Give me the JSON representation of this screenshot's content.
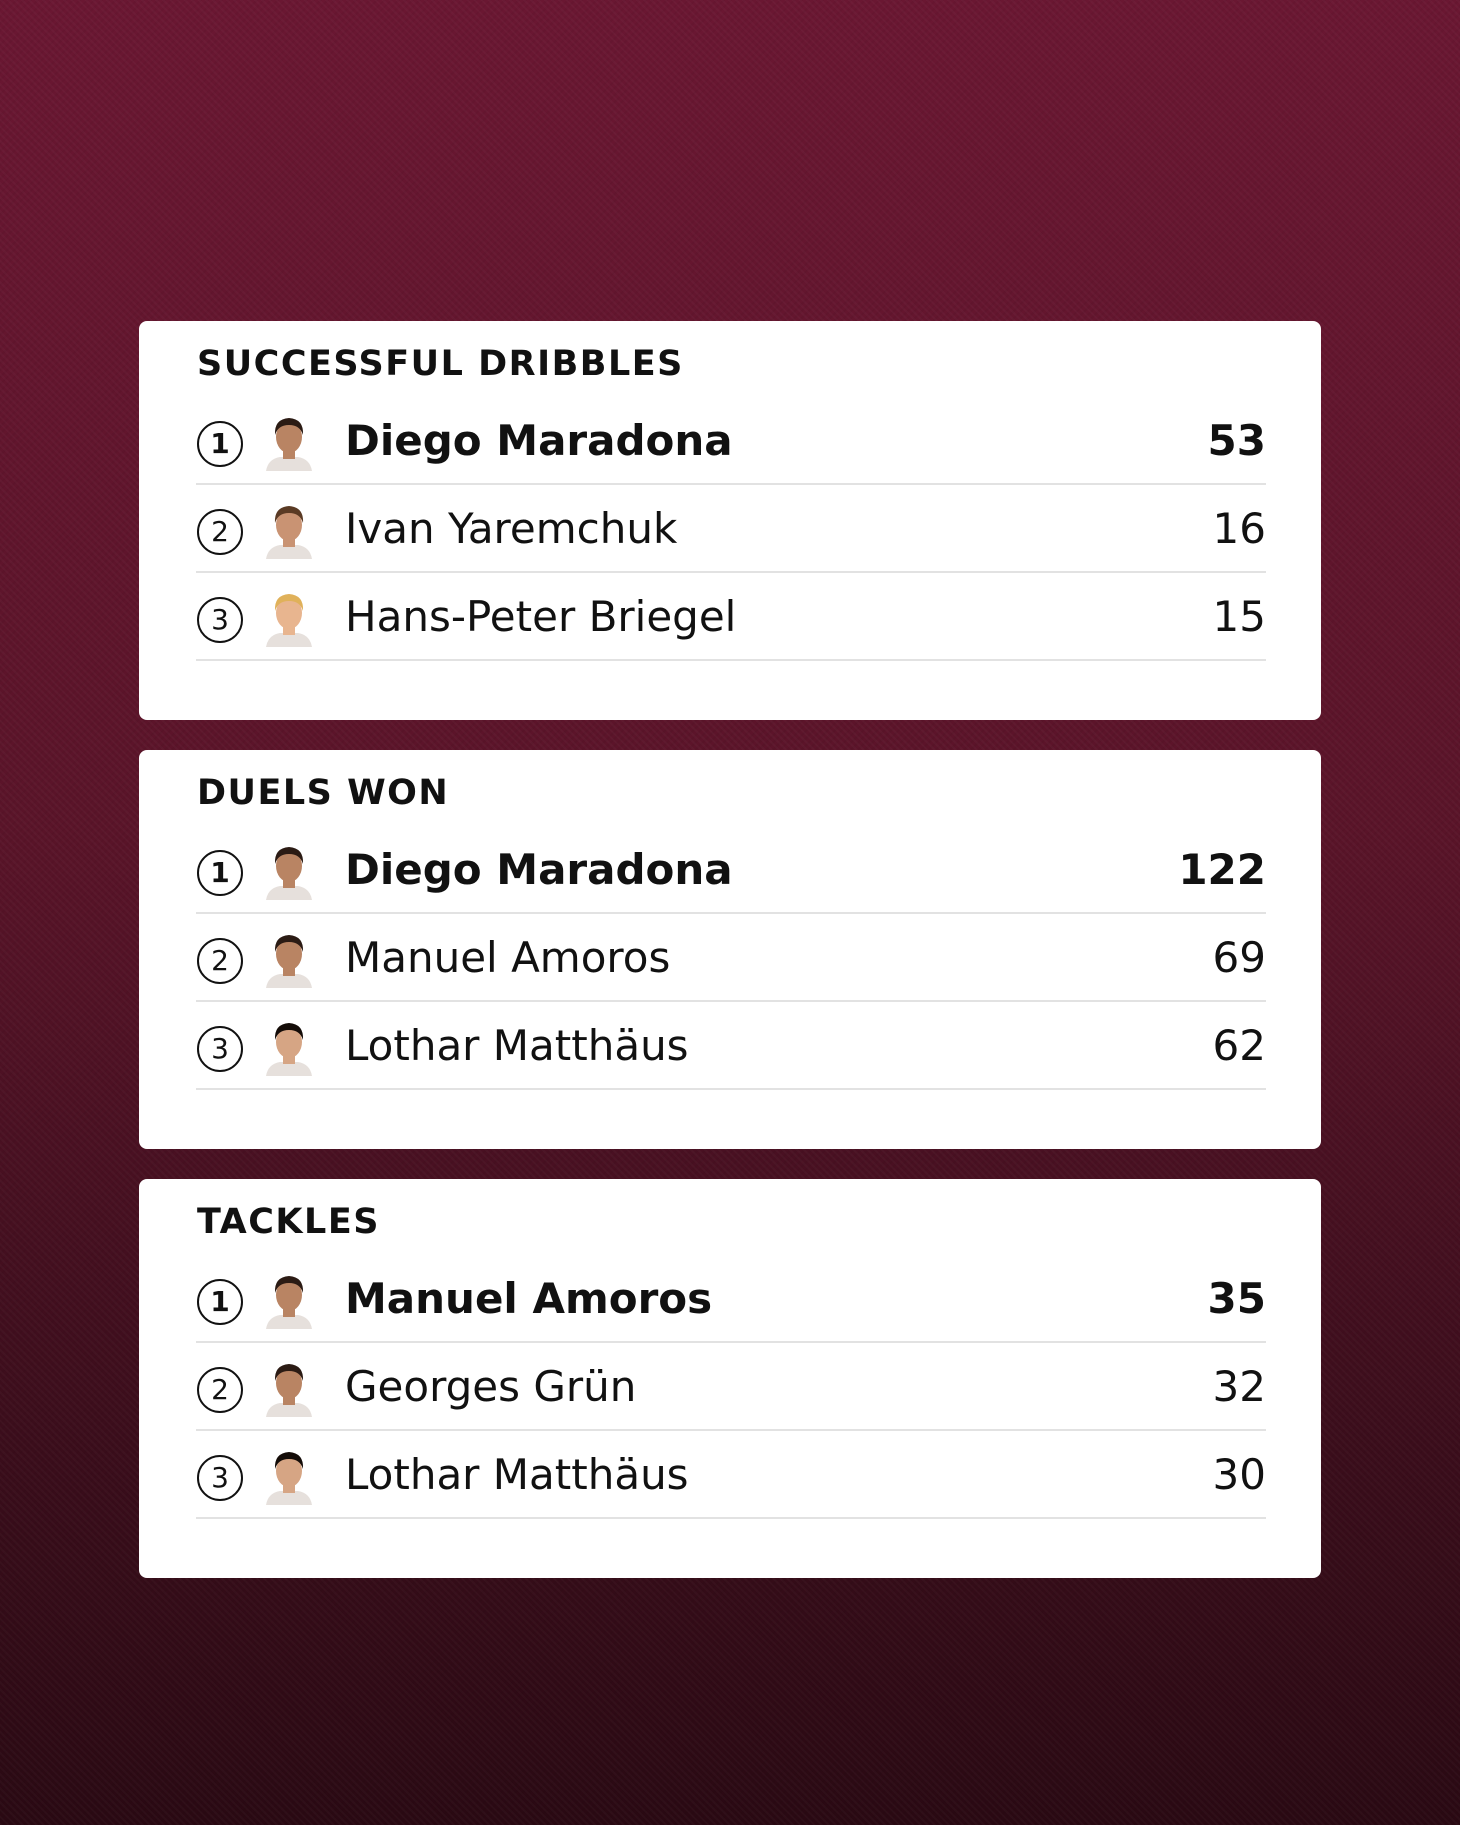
{
  "colors": {
    "background_top": "#6a1732",
    "background_bottom": "#2a0913",
    "card": "#ffffff",
    "text": "#111111",
    "divider": "#e2e2e2"
  },
  "sections": [
    {
      "title": "SUCCESSFUL DRIBBLES",
      "rows": [
        {
          "rank": "1",
          "name": "Diego Maradona",
          "value": "53",
          "avatar": "player-portrait-icon"
        },
        {
          "rank": "2",
          "name": "Ivan Yaremchuk",
          "value": "16",
          "avatar": "player-portrait-icon"
        },
        {
          "rank": "3",
          "name": "Hans-Peter Briegel",
          "value": "15",
          "avatar": "player-portrait-icon"
        }
      ]
    },
    {
      "title": "DUELS WON",
      "rows": [
        {
          "rank": "1",
          "name": "Diego Maradona",
          "value": "122",
          "avatar": "player-portrait-icon"
        },
        {
          "rank": "2",
          "name": "Manuel Amoros",
          "value": "69",
          "avatar": "player-portrait-icon"
        },
        {
          "rank": "3",
          "name": "Lothar Matthäus",
          "value": "62",
          "avatar": "player-portrait-icon"
        }
      ]
    },
    {
      "title": "TACKLES",
      "rows": [
        {
          "rank": "1",
          "name": "Manuel Amoros",
          "value": "35",
          "avatar": "player-portrait-icon"
        },
        {
          "rank": "2",
          "name": "Georges Grün",
          "value": "32",
          "avatar": "player-portrait-icon"
        },
        {
          "rank": "3",
          "name": "Lothar Matthäus",
          "value": "30",
          "avatar": "player-portrait-icon"
        }
      ]
    }
  ]
}
